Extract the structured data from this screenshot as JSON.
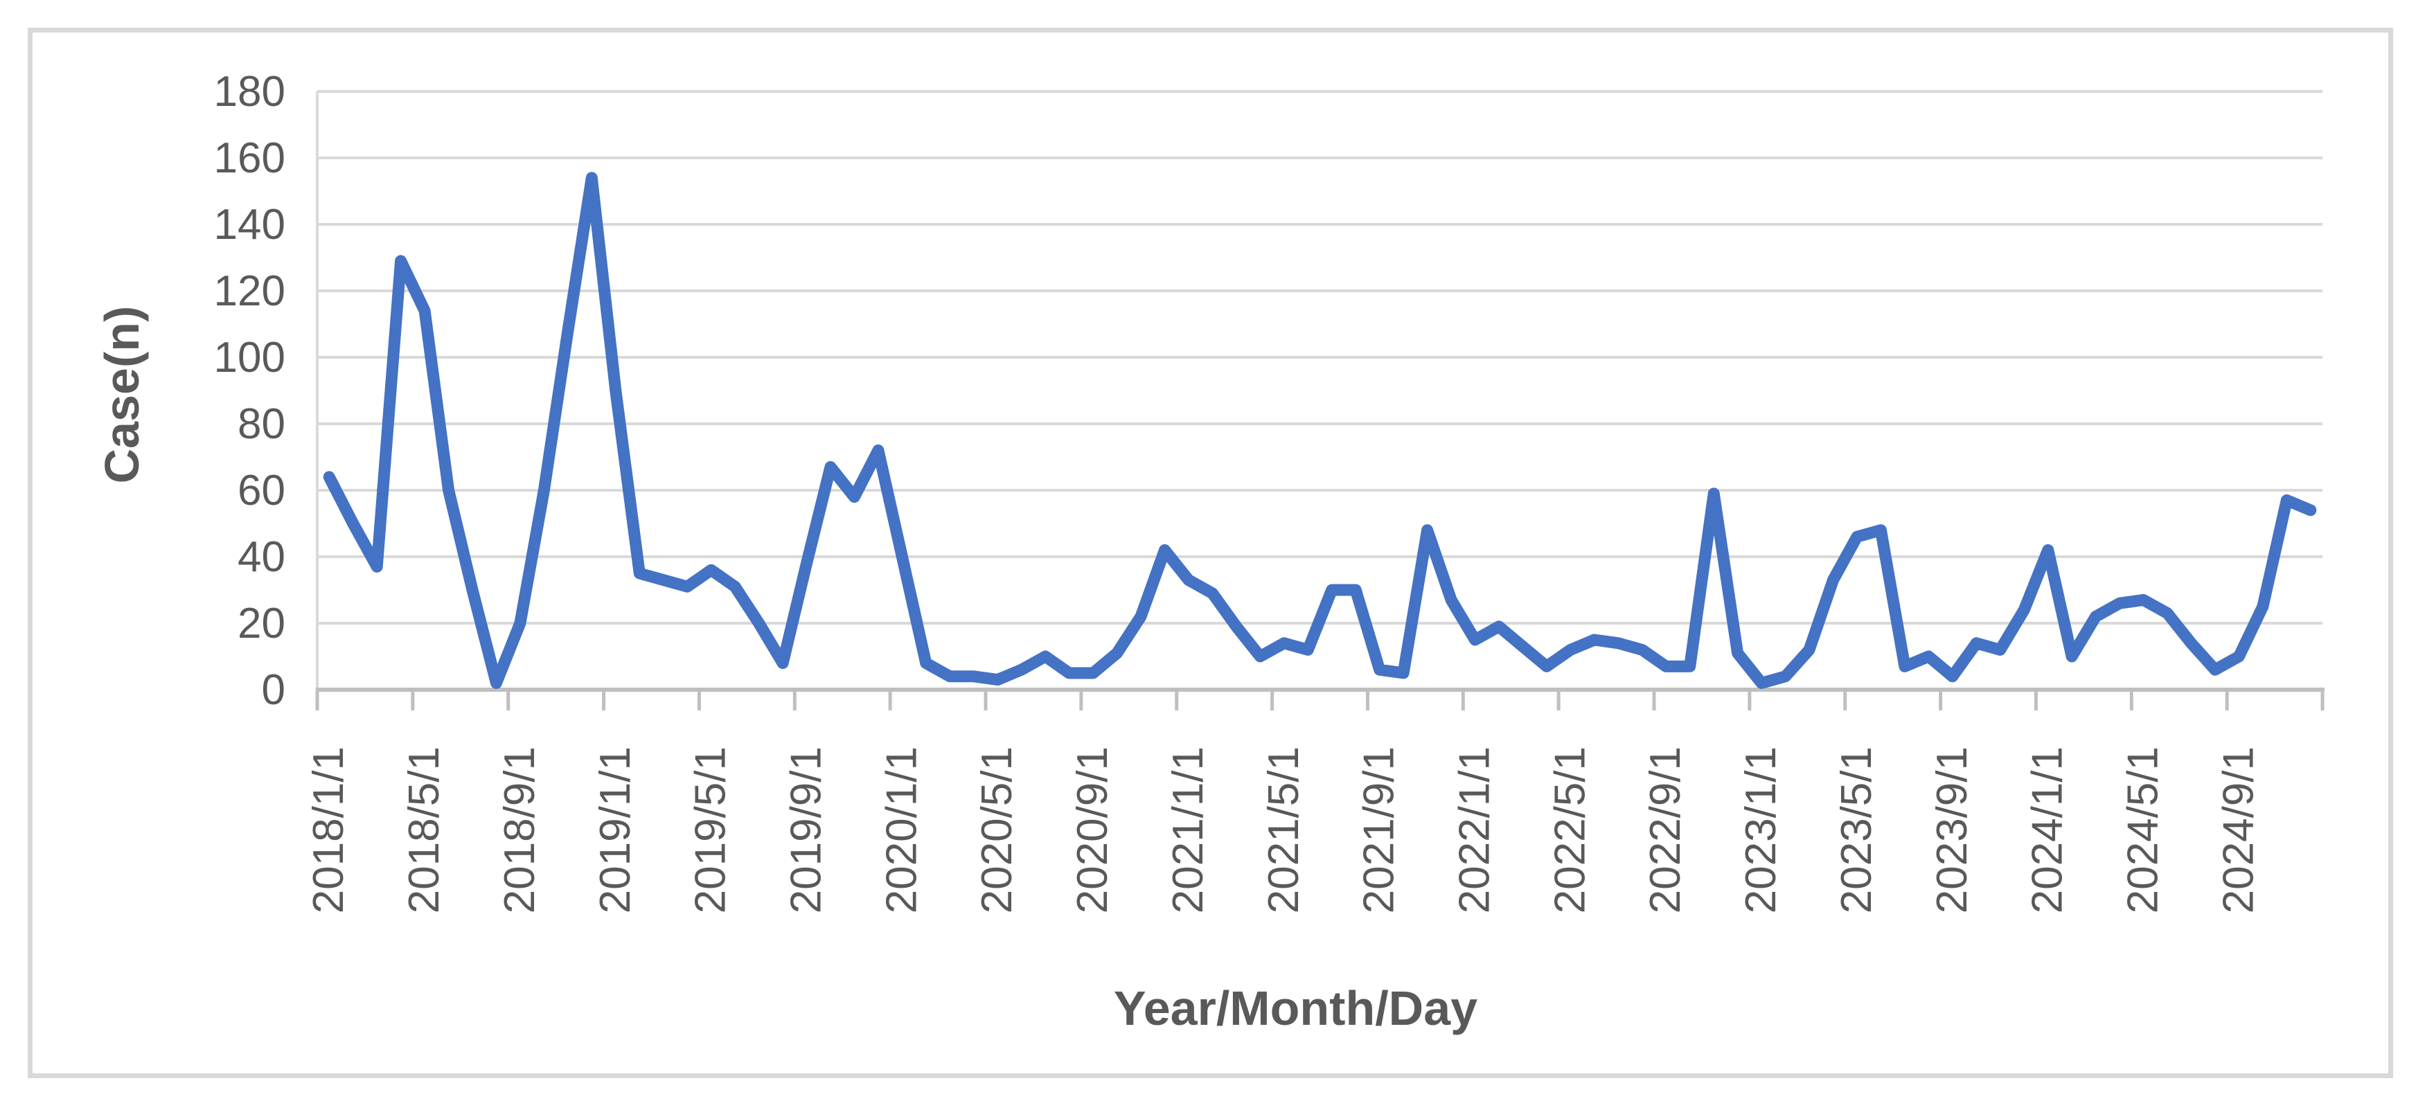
{
  "chart_data": {
    "type": "line",
    "title": "",
    "xlabel": "Year/Month/Day",
    "ylabel": "Case(n)",
    "ylim": [
      0,
      180
    ],
    "ytick_step": 20,
    "xtick_every": 4,
    "grid": "horizontal",
    "legend": "none",
    "categories": [
      "2018/1/1",
      "2018/2/1",
      "2018/3/1",
      "2018/4/1",
      "2018/5/1",
      "2018/6/1",
      "2018/7/1",
      "2018/8/1",
      "2018/9/1",
      "2018/10/1",
      "2018/11/1",
      "2018/12/1",
      "2019/1/1",
      "2019/2/1",
      "2019/3/1",
      "2019/4/1",
      "2019/5/1",
      "2019/6/1",
      "2019/7/1",
      "2019/8/1",
      "2019/9/1",
      "2019/10/1",
      "2019/11/1",
      "2019/12/1",
      "2020/1/1",
      "2020/2/1",
      "2020/3/1",
      "2020/4/1",
      "2020/5/1",
      "2020/6/1",
      "2020/7/1",
      "2020/8/1",
      "2020/9/1",
      "2020/10/1",
      "2020/11/1",
      "2020/12/1",
      "2021/1/1",
      "2021/2/1",
      "2021/3/1",
      "2021/4/1",
      "2021/5/1",
      "2021/6/1",
      "2021/7/1",
      "2021/8/1",
      "2021/9/1",
      "2021/10/1",
      "2021/11/1",
      "2021/12/1",
      "2022/1/1",
      "2022/2/1",
      "2022/3/1",
      "2022/4/1",
      "2022/5/1",
      "2022/6/1",
      "2022/7/1",
      "2022/8/1",
      "2022/9/1",
      "2022/10/1",
      "2022/11/1",
      "2022/12/1",
      "2023/1/1",
      "2023/2/1",
      "2023/3/1",
      "2023/4/1",
      "2023/5/1",
      "2023/6/1",
      "2023/7/1",
      "2023/8/1",
      "2023/9/1",
      "2023/10/1",
      "2023/11/1",
      "2023/12/1",
      "2024/1/1",
      "2024/2/1",
      "2024/3/1",
      "2024/4/1",
      "2024/5/1",
      "2024/6/1",
      "2024/7/1",
      "2024/8/1",
      "2024/9/1",
      "2024/10/1",
      "2024/11/1",
      "2024/12/1"
    ],
    "values": [
      64,
      50,
      37,
      129,
      114,
      60,
      30,
      2,
      20,
      60,
      108,
      154,
      90,
      35,
      33,
      31,
      36,
      31,
      20,
      8,
      38,
      67,
      58,
      72,
      40,
      8,
      4,
      4,
      3,
      6,
      10,
      5,
      5,
      11,
      22,
      42,
      33,
      29,
      19,
      10,
      14,
      12,
      30,
      30,
      6,
      5,
      48,
      27,
      15,
      19,
      13,
      7,
      12,
      15,
      14,
      12,
      7,
      7,
      59,
      11,
      2,
      4,
      12,
      33,
      46,
      48,
      7,
      10,
      4,
      14,
      12,
      24,
      42,
      10,
      22,
      26,
      27,
      23,
      14,
      6,
      10,
      25,
      57,
      54
    ]
  },
  "colors": {
    "line": "#4472C4",
    "gridline": "#D9D9D9",
    "axis": "#BFBFBF",
    "text": "#595959",
    "border": "#D9D9D9"
  }
}
